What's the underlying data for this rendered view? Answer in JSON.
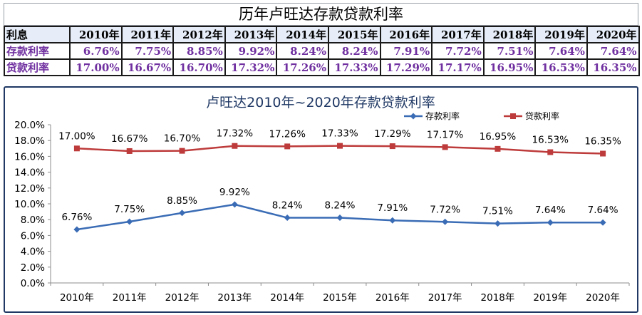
{
  "table": {
    "title": "历年卢旺达存款贷款利率",
    "header_label": "利息",
    "years": [
      "2010年",
      "2011年",
      "2012年",
      "2013年",
      "2014年",
      "2015年",
      "2016年",
      "2017年",
      "2018年",
      "2019年",
      "2020年"
    ],
    "rows": [
      {
        "label": "存款利率",
        "cells": [
          "6.76%",
          "7.75%",
          "8.85%",
          "9.92%",
          "8.24%",
          "8.24%",
          "7.91%",
          "7.72%",
          "7.51%",
          "7.64%",
          "7.64%"
        ]
      },
      {
        "label": "贷款利率",
        "cells": [
          "17.00%",
          "16.67%",
          "16.70%",
          "17.32%",
          "17.26%",
          "17.33%",
          "17.29%",
          "17.17%",
          "16.95%",
          "16.53%",
          "16.35%"
        ]
      }
    ]
  },
  "colors": {
    "deposit": "#3a6cb5",
    "loan": "#be3b3b",
    "table_text": "#7030a0"
  },
  "chart_data": {
    "type": "line",
    "title": "卢旺达2010年~2020年存款贷款利率",
    "categories": [
      "2010年",
      "2011年",
      "2012年",
      "2013年",
      "2014年",
      "2015年",
      "2016年",
      "2017年",
      "2018年",
      "2019年",
      "2020年"
    ],
    "series": [
      {
        "name": "存款利率",
        "marker": "diamond",
        "values": [
          6.76,
          7.75,
          8.85,
          9.92,
          8.24,
          8.24,
          7.91,
          7.72,
          7.51,
          7.64,
          7.64
        ]
      },
      {
        "name": "贷款利率",
        "marker": "square",
        "values": [
          17.0,
          16.67,
          16.7,
          17.32,
          17.26,
          17.33,
          17.29,
          17.17,
          16.95,
          16.53,
          16.35
        ]
      }
    ],
    "ylim": [
      0,
      20
    ],
    "yticks": [
      "0.0%",
      "2.0%",
      "4.0%",
      "6.0%",
      "8.0%",
      "10.0%",
      "12.0%",
      "14.0%",
      "16.0%",
      "18.0%",
      "20.0%"
    ],
    "xlabel": "",
    "ylabel": "",
    "legend": "top-right",
    "grid": false
  }
}
